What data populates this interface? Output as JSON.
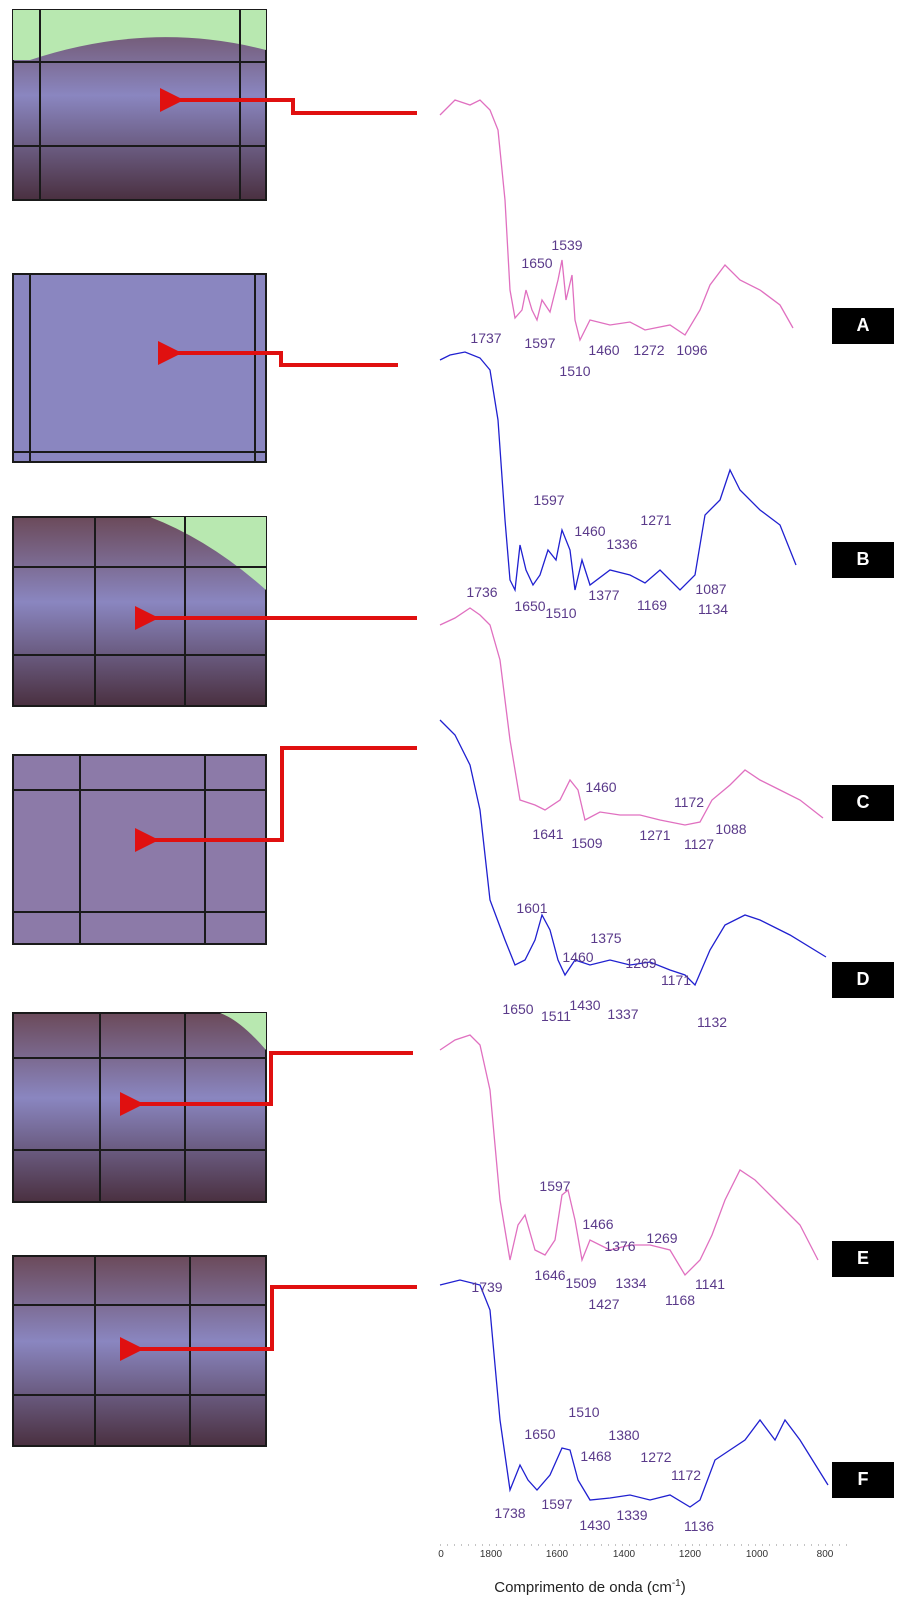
{
  "panels": [
    {
      "label": "A",
      "peaks": [
        1737,
        1650,
        1539,
        1597,
        1510,
        1460,
        1272,
        1096
      ]
    },
    {
      "label": "B",
      "peaks": [
        1736,
        1597,
        1650,
        1460,
        1510,
        1336,
        1271,
        1377,
        1169,
        1087,
        1134
      ]
    },
    {
      "label": "C",
      "peaks": [
        1460,
        1641,
        1509,
        1172,
        1271,
        1127,
        1088
      ]
    },
    {
      "label": "D",
      "peaks": [
        1601,
        1460,
        1375,
        1269,
        1171,
        1650,
        1511,
        1430,
        1337,
        1132
      ]
    },
    {
      "label": "E",
      "peaks": [
        1597,
        1466,
        1376,
        1269,
        1739,
        1646,
        1509,
        1334,
        1427,
        1168,
        1141
      ]
    },
    {
      "label": "F",
      "peaks": [
        1510,
        1380,
        1650,
        1468,
        1272,
        1172,
        1738,
        1597,
        1430,
        1339,
        1136
      ]
    }
  ],
  "x_axis": {
    "ticks": [
      0,
      1800,
      1600,
      1400,
      1200,
      1000,
      800
    ],
    "title": "Comprimento de onda (cm",
    "title_sup": "-1",
    "title_end": ")"
  }
}
